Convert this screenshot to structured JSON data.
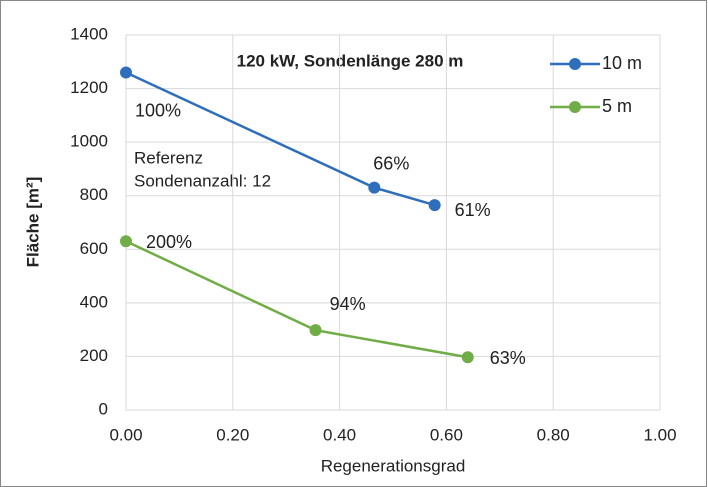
{
  "chart_data": {
    "type": "line",
    "title": "120 kW, Sondenlänge 280 m",
    "xlabel": "Regenerationsgrad",
    "ylabel": "Fläche [m²]",
    "annotation": [
      "Referenz",
      "Sondenanzahl: 12"
    ],
    "series": [
      {
        "name": "10 m",
        "color": "#2f6eba",
        "x": [
          0,
          0.465,
          0.578
        ],
        "values": [
          1260,
          830,
          765
        ],
        "point_labels": [
          "100%",
          "66%",
          "61%"
        ]
      },
      {
        "name": "5 m",
        "color": "#70ad47",
        "x": [
          0,
          0.355,
          0.64
        ],
        "values": [
          630,
          298,
          197
        ],
        "point_labels": [
          "200%",
          "94%",
          "63%"
        ]
      }
    ],
    "xlim": [
      0,
      1
    ],
    "xticks": [
      {
        "value": 0,
        "label": "0.00"
      },
      {
        "value": 0.2,
        "label": "0.20"
      },
      {
        "value": 0.4,
        "label": "0.40"
      },
      {
        "value": 0.6,
        "label": "0.60"
      },
      {
        "value": 0.8,
        "label": "0.80"
      },
      {
        "value": 1,
        "label": "1.00"
      }
    ],
    "ylim": [
      0,
      1400
    ],
    "yticks": [
      0,
      200,
      400,
      600,
      800,
      1000,
      1200,
      1400
    ],
    "grid": true,
    "legend": "top-right"
  }
}
